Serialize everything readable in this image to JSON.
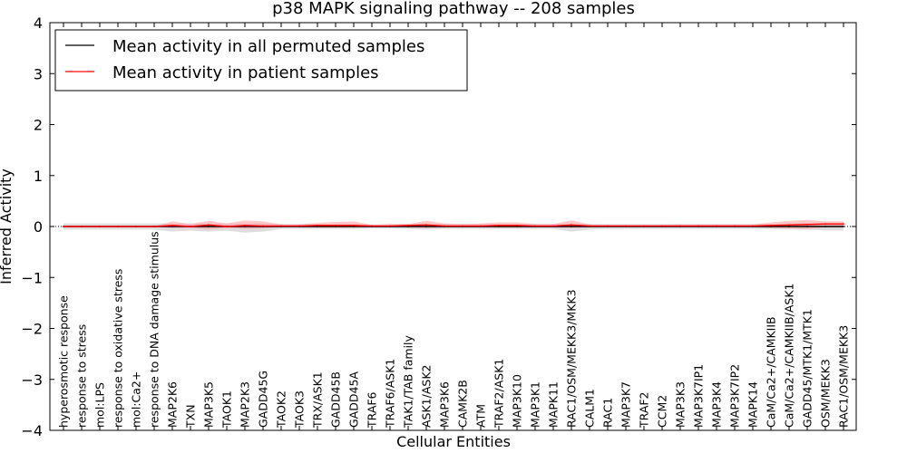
{
  "chart_data": {
    "type": "line",
    "title": "p38 MAPK signaling pathway -- 208 samples",
    "xlabel": "Cellular Entities",
    "ylabel": "Inferred Activity",
    "ylim": [
      -4,
      4
    ],
    "yticks": [
      4,
      3,
      2,
      1,
      0,
      -1,
      -2,
      -3,
      -4
    ],
    "ytick_labels": [
      "4",
      "3",
      "2",
      "1",
      "0",
      "−1",
      "−2",
      "−3",
      "−4"
    ],
    "categories": [
      "hyperosmotic response",
      "response to stress",
      "mol:LPS",
      "response to oxidative stress",
      "mol:Ca2+",
      "response to DNA damage stimulus",
      "MAP2K6",
      "TXN",
      "MAP3K5",
      "TAOK1",
      "MAP2K3",
      "GADD45G",
      "TAOK2",
      "TAOK3",
      "TRX/ASK1",
      "GADD45B",
      "GADD45A",
      "TRAF6",
      "TRAF6/ASK1",
      "TAK1/TAB family",
      "ASK1/ASK2",
      "MAP3K6",
      "CAMK2B",
      "ATM",
      "TRAF2/ASK1",
      "MAP3K10",
      "MAP3K1",
      "MAPK11",
      "RAC1/OSM/MEKK3/MKK3",
      "CALM1",
      "RAC1",
      "MAP3K7",
      "TRAF2",
      "CCM2",
      "MAP3K3",
      "MAP3K7IP1",
      "MAP3K4",
      "MAP3K7IP2",
      "MAPK14",
      "CaM/Ca2+/CAMKIIB",
      "CaM/Ca2+/CAMKIIB/ASK1",
      "GADD45/MTK1/MTK1",
      "OSM/MEKK3",
      "RAC1/OSM/MEKK3"
    ],
    "legend": {
      "location": "top-left",
      "entries": [
        {
          "label": "Mean activity in all permuted samples",
          "color": "#000000"
        },
        {
          "label": "Mean activity in patient samples",
          "color": "#ff0000"
        }
      ]
    },
    "series": [
      {
        "name": "Mean activity in all permuted samples",
        "color": "#000000",
        "values": [
          0,
          0,
          0,
          0,
          0,
          0,
          0,
          0,
          0,
          0,
          0,
          0,
          0,
          0,
          0,
          0,
          0,
          0,
          0,
          0,
          0,
          0,
          0,
          0,
          0,
          0,
          0,
          0,
          0,
          0,
          0,
          0,
          0,
          0,
          0,
          0,
          0,
          0,
          0,
          0,
          0,
          0,
          0,
          0
        ],
        "band_low": [
          -0.06,
          -0.06,
          -0.06,
          -0.06,
          -0.06,
          -0.06,
          -0.1,
          -0.08,
          -0.1,
          -0.08,
          -0.12,
          -0.1,
          -0.05,
          -0.05,
          -0.05,
          -0.05,
          -0.05,
          -0.04,
          -0.04,
          -0.05,
          -0.06,
          -0.05,
          -0.05,
          -0.05,
          -0.05,
          -0.05,
          -0.05,
          -0.05,
          -0.1,
          -0.06,
          -0.05,
          -0.05,
          -0.05,
          -0.05,
          -0.05,
          -0.05,
          -0.05,
          -0.05,
          -0.05,
          -0.05,
          -0.06,
          -0.06,
          -0.08,
          -0.08
        ],
        "band_high": [
          0.06,
          0.06,
          0.06,
          0.06,
          0.06,
          0.06,
          0.06,
          0.06,
          0.06,
          0.06,
          0.06,
          0.06,
          0.05,
          0.05,
          0.05,
          0.05,
          0.05,
          0.04,
          0.04,
          0.05,
          0.06,
          0.05,
          0.05,
          0.05,
          0.05,
          0.05,
          0.05,
          0.05,
          0.06,
          0.05,
          0.05,
          0.05,
          0.05,
          0.05,
          0.05,
          0.05,
          0.05,
          0.05,
          0.05,
          0.05,
          0.06,
          0.06,
          0.06,
          0.06
        ],
        "band_color": "#c8c8c8"
      },
      {
        "name": "Mean activity in patient samples",
        "color": "#ff0000",
        "values": [
          0,
          0,
          0,
          0,
          0,
          0,
          0.02,
          0,
          0.03,
          0,
          0.02,
          0.01,
          0.01,
          0.01,
          0.02,
          0.02,
          0.02,
          0.01,
          0.01,
          0.02,
          0.03,
          0.01,
          0.01,
          0.01,
          0.02,
          0.02,
          0.01,
          0.01,
          0.03,
          0.01,
          0.01,
          0.01,
          0.01,
          0.01,
          0.01,
          0.01,
          0.01,
          0.01,
          0.01,
          0.02,
          0.03,
          0.04,
          0.05,
          0.05
        ],
        "band_low": [
          0,
          0,
          0,
          0,
          0,
          0,
          -0.03,
          -0.03,
          -0.06,
          -0.03,
          -0.05,
          -0.04,
          -0.01,
          -0.01,
          -0.02,
          -0.02,
          -0.02,
          -0.01,
          -0.01,
          -0.02,
          -0.03,
          -0.02,
          -0.02,
          -0.02,
          -0.02,
          -0.02,
          -0.02,
          -0.02,
          -0.03,
          -0.02,
          -0.01,
          -0.01,
          -0.01,
          -0.01,
          -0.01,
          -0.01,
          -0.01,
          -0.01,
          -0.01,
          -0.03,
          -0.04,
          -0.05,
          -0.02,
          -0.02
        ],
        "band_high": [
          0,
          0,
          0,
          0,
          0,
          0,
          0.1,
          0.05,
          0.11,
          0.06,
          0.12,
          0.1,
          0.04,
          0.04,
          0.07,
          0.09,
          0.1,
          0.03,
          0.05,
          0.05,
          0.11,
          0.06,
          0.05,
          0.06,
          0.08,
          0.08,
          0.05,
          0.05,
          0.12,
          0.04,
          0.03,
          0.03,
          0.03,
          0.03,
          0.04,
          0.04,
          0.04,
          0.04,
          0.04,
          0.08,
          0.11,
          0.13,
          0.1,
          0.1
        ],
        "band_color": "#ff9999"
      }
    ]
  }
}
